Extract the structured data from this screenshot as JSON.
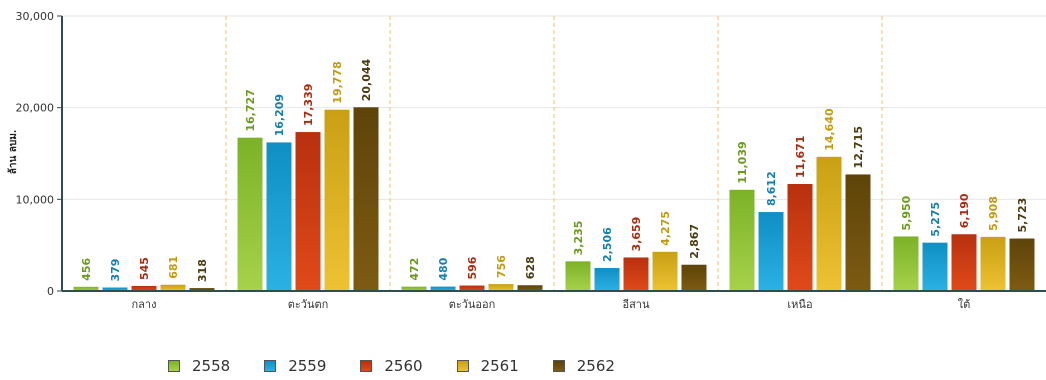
{
  "chart_data": {
    "type": "bar",
    "ylabel": "ล้าน ลบม.",
    "ylim": [
      0,
      30000
    ],
    "yticks": [
      {
        "value": 0,
        "label": "0"
      },
      {
        "value": 10000,
        "label": "10,000"
      },
      {
        "value": 20000,
        "label": "20,000"
      },
      {
        "value": 30000,
        "label": "30,000"
      }
    ],
    "categories": [
      "กลาง",
      "ตะวันตก",
      "ตะวันออก",
      "อีสาน",
      "เหนือ",
      "ใต้"
    ],
    "series": [
      {
        "name": "2558",
        "color": "#7cb228",
        "color_light": "#a6d24a",
        "label_color": "#6b9a1f",
        "values": [
          456,
          16727,
          472,
          3235,
          11039,
          5950
        ],
        "labels": [
          "456",
          "16,727",
          "472",
          "3,235",
          "11,039",
          "5,950"
        ]
      },
      {
        "name": "2559",
        "color": "#0f8fc4",
        "color_light": "#2bb1e4",
        "label_color": "#157fae",
        "values": [
          379,
          16209,
          480,
          2506,
          8612,
          5275
        ],
        "labels": [
          "379",
          "16,209",
          "480",
          "2,506",
          "8,612",
          "5,275"
        ]
      },
      {
        "name": "2560",
        "color": "#b8300e",
        "color_light": "#e04a1a",
        "label_color": "#a82c10",
        "values": [
          545,
          17339,
          596,
          3659,
          11671,
          6190
        ],
        "labels": [
          "545",
          "17,339",
          "596",
          "3,659",
          "11,671",
          "6,190"
        ]
      },
      {
        "name": "2561",
        "color": "#c9a014",
        "color_light": "#edc233",
        "label_color": "#c29a12",
        "values": [
          681,
          19778,
          756,
          4275,
          14640,
          5908
        ],
        "labels": [
          "681",
          "19,778",
          "756",
          "4,275",
          "14,640",
          "5,908"
        ]
      },
      {
        "name": "2562",
        "color": "#5e4409",
        "color_light": "#7d5b12",
        "label_color": "#4a3a10",
        "values": [
          318,
          20044,
          628,
          2867,
          12715,
          5723
        ],
        "labels": [
          "318",
          "20,044",
          "628",
          "2,867",
          "12,715",
          "5,723"
        ]
      }
    ],
    "grid": true,
    "legend_position": "bottom-left"
  }
}
